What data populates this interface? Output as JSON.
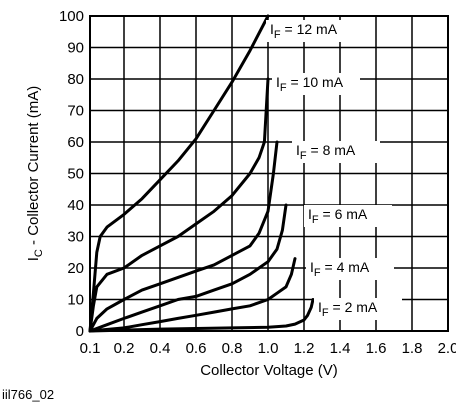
{
  "figure_id": "iil766_02",
  "chart_data": {
    "type": "line",
    "xlabel": "Collector Voltage (V)",
    "ylabel": {
      "prefix": "I",
      "sub": "C",
      "rest": " - Collector Current (mA)"
    },
    "xlim": [
      0.1,
      2.0
    ],
    "ylim": [
      0,
      100
    ],
    "xticks": [
      0.1,
      0.2,
      0.4,
      0.6,
      0.8,
      1.0,
      1.2,
      1.4,
      1.6,
      1.8,
      2.0
    ],
    "xtick_labels": [
      "0.1",
      "0.2",
      "0.4",
      "0.6",
      "0.8",
      "1.0",
      "1.2",
      "1.4",
      "1.6",
      "1.8",
      "2.0"
    ],
    "yticks": [
      0,
      10,
      20,
      30,
      40,
      50,
      60,
      70,
      80,
      90,
      100
    ],
    "ytick_labels": [
      "0",
      "10",
      "20",
      "30",
      "40",
      "50",
      "60",
      "70",
      "80",
      "90",
      "100"
    ],
    "grid": true,
    "series": [
      {
        "label": {
          "prefix": "I",
          "sub": "F",
          "rest": " = 12 mA"
        },
        "x": [
          0.1,
          0.11,
          0.12,
          0.13,
          0.15,
          0.2,
          0.3,
          0.4,
          0.5,
          0.6,
          0.7,
          0.8,
          0.9,
          1.0
        ],
        "y": [
          0,
          12,
          25,
          30,
          33,
          37,
          42,
          48,
          54,
          61,
          70,
          79,
          89,
          100
        ]
      },
      {
        "label": {
          "prefix": "I",
          "sub": "F",
          "rest": " = 10 mA"
        },
        "x": [
          0.1,
          0.11,
          0.12,
          0.15,
          0.2,
          0.3,
          0.4,
          0.5,
          0.6,
          0.7,
          0.8,
          0.9,
          0.95,
          0.98,
          0.99,
          1.0
        ],
        "y": [
          0,
          8,
          14,
          18,
          20,
          24,
          27,
          30,
          34,
          38,
          43,
          50,
          55,
          60,
          70,
          80
        ]
      },
      {
        "label": {
          "prefix": "I",
          "sub": "F",
          "rest": " = 8 mA"
        },
        "x": [
          0.1,
          0.12,
          0.15,
          0.2,
          0.3,
          0.4,
          0.5,
          0.6,
          0.7,
          0.8,
          0.9,
          0.95,
          1.0,
          1.03,
          1.05
        ],
        "y": [
          0,
          4,
          7,
          10,
          13,
          15,
          17,
          19,
          21,
          24,
          27,
          31,
          38,
          50,
          60
        ]
      },
      {
        "label": {
          "prefix": "I",
          "sub": "F",
          "rest": " = 6 mA"
        },
        "x": [
          0.1,
          0.15,
          0.2,
          0.3,
          0.4,
          0.5,
          0.6,
          0.7,
          0.8,
          0.9,
          1.0,
          1.05,
          1.08,
          1.1
        ],
        "y": [
          0,
          2,
          4,
          6,
          8,
          10,
          11,
          13,
          15,
          18,
          22,
          26,
          32,
          40
        ]
      },
      {
        "label": {
          "prefix": "I",
          "sub": "F",
          "rest": " = 4 mA"
        },
        "x": [
          0.1,
          0.2,
          0.3,
          0.4,
          0.5,
          0.6,
          0.7,
          0.8,
          0.9,
          1.0,
          1.05,
          1.1,
          1.13,
          1.15
        ],
        "y": [
          0,
          1,
          2,
          3,
          4,
          5,
          6,
          7,
          8,
          10,
          12,
          14,
          18,
          23
        ]
      },
      {
        "label": {
          "prefix": "I",
          "sub": "F",
          "rest": " = 2 mA"
        },
        "x": [
          0.1,
          0.2,
          0.4,
          0.6,
          0.8,
          1.0,
          1.1,
          1.15,
          1.2,
          1.22,
          1.24,
          1.25
        ],
        "y": [
          0,
          0.3,
          0.6,
          0.8,
          1.0,
          1.2,
          1.6,
          2.2,
          3.5,
          5.0,
          7.5,
          10
        ]
      }
    ]
  }
}
